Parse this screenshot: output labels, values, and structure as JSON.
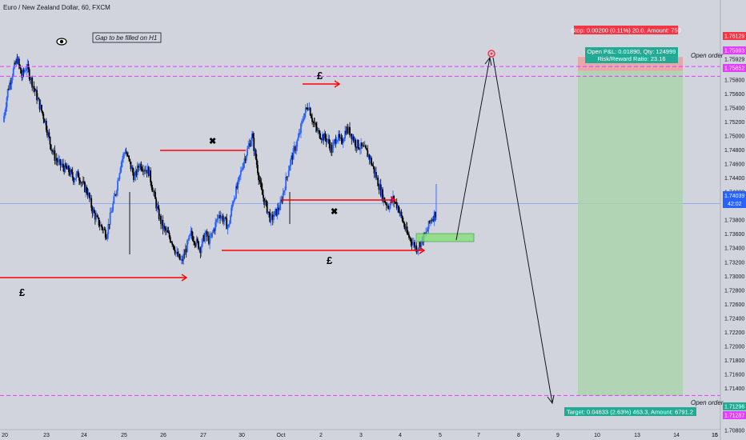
{
  "header": {
    "symbol_title": "Euro / New Zealand Dollar, 60, FXCM"
  },
  "annotations": {
    "gap_note": "Gap to be filled on H1",
    "open_order_top": "Open order",
    "open_order_bottom": "Open order",
    "pound_1": "£",
    "pound_2": "£",
    "pound_3": "£",
    "cross_1": "✖",
    "cross_2": "✖"
  },
  "position": {
    "stop_label": "Stop: 0.00200 (0.11%) 20.0, Amount: 750",
    "pnl_label": "Open P&L: 0.01890, Qty: 124999",
    "rr_label": "Risk/Reward Ratio: 23.16",
    "target_label": "Target: 0.04633 (2.63%) 463.3, Amount: 6791.2",
    "entry": 1.75929,
    "stop": 1.76129,
    "target": 1.71296
  },
  "price_markers": {
    "current": {
      "price": 1.74039,
      "label": "1.74039",
      "countdown": "42:02"
    },
    "stop": {
      "price": 1.76129,
      "label": "1.76129"
    },
    "upper_line": {
      "price": 1.75993,
      "label": "1.75993"
    },
    "entry": {
      "price": 1.75929,
      "label": "1.75929"
    },
    "lower_line": {
      "price": 1.75852,
      "label": "1.75852"
    },
    "target": {
      "price": 1.71296,
      "label": "1.71296"
    },
    "target_low": {
      "price": 1.71287,
      "label": "1.71287"
    }
  },
  "colors": {
    "background": "#d1d4dc",
    "up_candle": "#2962ff",
    "down_candle": "#000000",
    "red_line": "#ff0000",
    "magenta_line": "#e040fb",
    "profit_zone": "#a5d6a7",
    "stop_zone": "#ef9a9a",
    "current_price": "#2962ff"
  },
  "chart_data": {
    "type": "candlestick",
    "ylim": [
      1.708,
      1.7685
    ],
    "y_ticks": [
      "1.76400",
      "1.76200",
      "1.76000",
      "1.75800",
      "1.75600",
      "1.75400",
      "1.75200",
      "1.75000",
      "1.74800",
      "1.74600",
      "1.74400",
      "1.74200",
      "1.74000",
      "1.73800",
      "1.73600",
      "1.73400",
      "1.73200",
      "1.73000",
      "1.72800",
      "1.72600",
      "1.72400",
      "1.72200",
      "1.72000",
      "1.71800",
      "1.71600",
      "1.71400",
      "1.71000",
      "1.70800"
    ],
    "x_ticks": [
      "20",
      "23",
      "24",
      "25",
      "26",
      "27",
      "30",
      "Oct",
      "2",
      "3",
      "4",
      "5",
      "7",
      "8",
      "9",
      "10",
      "13",
      "14",
      "15",
      "16"
    ],
    "price_path": [
      1.752,
      1.7565,
      1.759,
      1.761,
      1.7585,
      1.76,
      1.758,
      1.756,
      1.754,
      1.752,
      1.749,
      1.747,
      1.746,
      1.7455,
      1.745,
      1.744,
      1.7445,
      1.743,
      1.742,
      1.7395,
      1.738,
      1.737,
      1.736,
      1.739,
      1.742,
      1.746,
      1.748,
      1.746,
      1.744,
      1.746,
      1.7455,
      1.745,
      1.742,
      1.739,
      1.737,
      1.736,
      1.735,
      1.733,
      1.732,
      1.734,
      1.736,
      1.735,
      1.734,
      1.736,
      1.735,
      1.737,
      1.739,
      1.738,
      1.737,
      1.741,
      1.743,
      1.746,
      1.748,
      1.75,
      1.746,
      1.742,
      1.74,
      1.738,
      1.739,
      1.74,
      1.743,
      1.746,
      1.748,
      1.75,
      1.753,
      1.7545,
      1.752,
      1.7505,
      1.75,
      1.7495,
      1.748,
      1.75,
      1.749,
      1.751,
      1.7505,
      1.749,
      1.7485,
      1.748,
      1.747,
      1.745,
      1.743,
      1.741,
      1.74,
      1.741,
      1.74,
      1.738,
      1.736,
      1.735,
      1.734,
      1.735,
      1.736,
      1.738,
      1.739
    ],
    "first_candle_x": 5,
    "last_candle_x": 545
  }
}
